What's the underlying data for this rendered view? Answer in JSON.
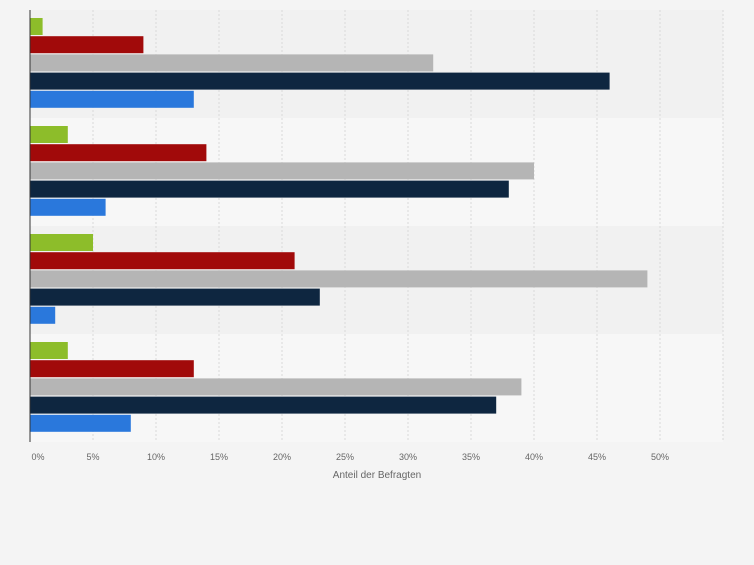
{
  "chart_data": {
    "type": "bar",
    "orientation": "horizontal",
    "grouped": true,
    "xlabel": "Anteil der Befragten",
    "x_unit": "%",
    "xlim": [
      0,
      55
    ],
    "x_ticks": [
      0,
      5,
      10,
      15,
      20,
      25,
      30,
      35,
      40,
      45,
      50
    ],
    "x_tick_labels": [
      "0%",
      "5%",
      "10%",
      "15%",
      "20%",
      "25%",
      "30%",
      "35%",
      "40%",
      "45%",
      "50%"
    ],
    "grid": true,
    "legend": "none",
    "series": [
      {
        "color": "#8dbd2a",
        "values": [
          1,
          3,
          5,
          3
        ]
      },
      {
        "color": "#a10a0a",
        "values": [
          9,
          14,
          21,
          13
        ]
      },
      {
        "color": "#b5b5b5",
        "values": [
          32,
          40,
          49,
          39
        ]
      },
      {
        "color": "#0e2640",
        "values": [
          46,
          38,
          23,
          37
        ]
      },
      {
        "color": "#2a78dc",
        "values": [
          13,
          6,
          2,
          8
        ]
      }
    ],
    "group_band_colors": [
      "#f1f1f1",
      "#f7f7f7"
    ]
  }
}
